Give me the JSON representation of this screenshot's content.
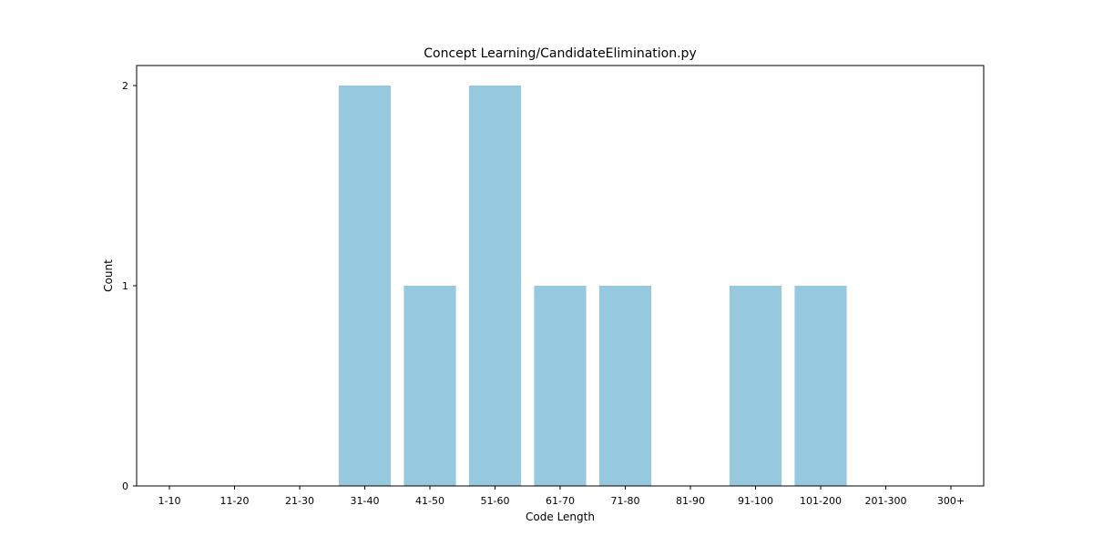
{
  "chart_data": {
    "type": "bar",
    "title": "Concept Learning/CandidateElimination.py",
    "xlabel": "Code Length",
    "ylabel": "Count",
    "categories": [
      "1-10",
      "11-20",
      "21-30",
      "31-40",
      "41-50",
      "51-60",
      "61-70",
      "71-80",
      "81-90",
      "91-100",
      "101-200",
      "201-300",
      "300+"
    ],
    "values": [
      0,
      0,
      0,
      2,
      1,
      2,
      1,
      1,
      0,
      1,
      1,
      0,
      0
    ],
    "ylim": [
      0,
      2.1
    ],
    "yticks": [
      "0",
      "1",
      "2"
    ],
    "bar_color": "#96c9de",
    "grid": false
  }
}
